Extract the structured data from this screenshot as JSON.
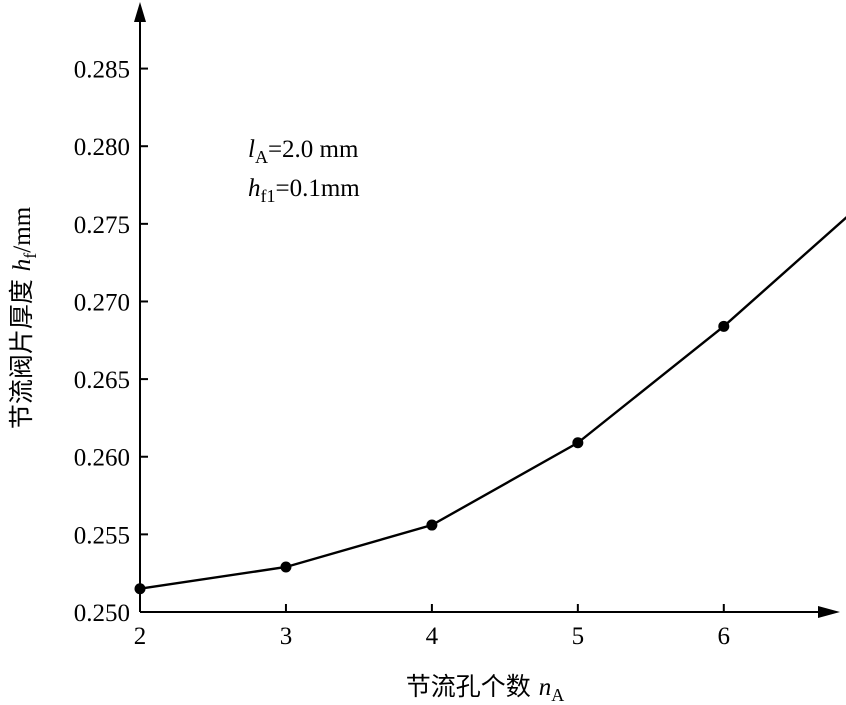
{
  "chart_data": {
    "type": "line",
    "x": [
      2,
      3,
      4,
      5,
      6
    ],
    "y": [
      0.2515,
      0.2529,
      0.2556,
      0.2609,
      0.2684
    ],
    "extension_end": [
      6.85,
      0.2755
    ],
    "xlim": [
      2,
      6.85
    ],
    "ylim": [
      0.25,
      0.288
    ],
    "x_ticks": [
      "2",
      "3",
      "4",
      "5",
      "6"
    ],
    "y_ticks": [
      "0.250",
      "0.255",
      "0.260",
      "0.265",
      "0.270",
      "0.275",
      "0.280",
      "0.285"
    ],
    "xlabel": {
      "text": "节流孔个数 ",
      "var": "n",
      "sub": "A"
    },
    "ylabel": {
      "text": "节流阀片厚度 ",
      "var": "h",
      "sub": "f",
      "unit": "/mm"
    },
    "annotations": [
      {
        "var": "l",
        "sub": "A",
        "text": "=2.0 mm"
      },
      {
        "var": "h",
        "sub": "f1",
        "text": "=0.1mm"
      }
    ],
    "grid": false,
    "marker": "filled-circle",
    "color": "#000000"
  }
}
